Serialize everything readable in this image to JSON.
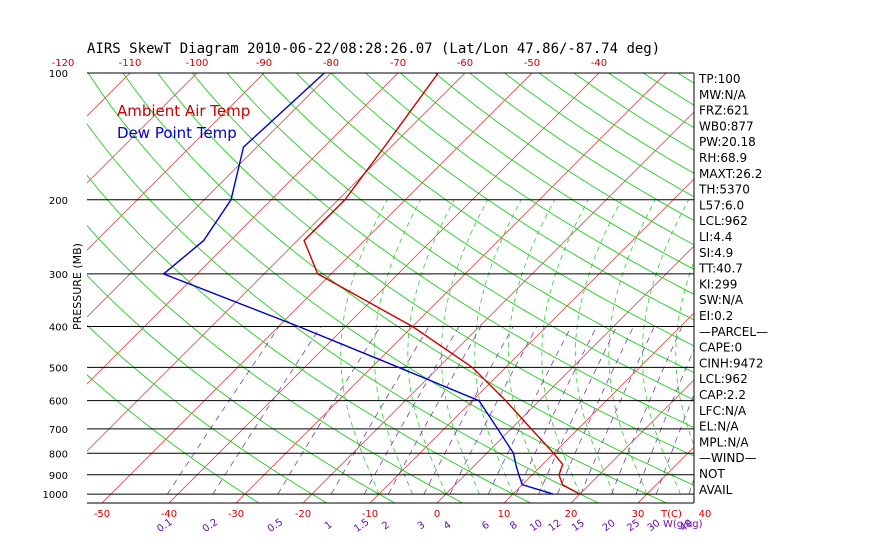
{
  "chart_data": {
    "type": "line",
    "title": "AIRS SkewT Diagram 2010-06-22/08:28:26.07 (Lat/Lon 47.86/-87.74 deg)",
    "ylabel": "PRESSURE (MB)",
    "xlabel_bottom": "T(C)",
    "mixing_ratio_label": "W(g/kg)",
    "pressure_ticks": [
      "100",
      "200",
      "300",
      "400",
      "500",
      "600",
      "700",
      "800",
      "900",
      "1000"
    ],
    "pressure_levels": [
      100,
      200,
      300,
      400,
      500,
      600,
      700,
      800,
      900,
      1000
    ],
    "top_temp_ticks": [
      "-120",
      "-110",
      "-100",
      "-90",
      "-80",
      "-70",
      "-60",
      "-50",
      "-40"
    ],
    "bottom_temp_ticks": [
      "-50",
      "-40",
      "-30",
      "-20",
      "-10",
      "0",
      "10",
      "20",
      "30",
      "40"
    ],
    "mixing_ratio_ticks": [
      "0.1",
      "0.2",
      "0.5",
      "1",
      "1.5",
      "2",
      "3",
      "4",
      "6",
      "8",
      "10",
      "12",
      "15",
      "20",
      "25",
      "30",
      "40"
    ],
    "legend": [
      "Ambient Air Temp",
      "Dew Point Temp"
    ],
    "series": [
      {
        "name": "Ambient Air Temp",
        "color": "#cc0000",
        "points": [
          {
            "p": 100,
            "t": -64
          },
          {
            "p": 150,
            "t": -61
          },
          {
            "p": 200,
            "t": -59
          },
          {
            "p": 250,
            "t": -59
          },
          {
            "p": 300,
            "t": -52
          },
          {
            "p": 400,
            "t": -30
          },
          {
            "p": 500,
            "t": -15
          },
          {
            "p": 600,
            "t": -5
          },
          {
            "p": 700,
            "t": 3
          },
          {
            "p": 800,
            "t": 10
          },
          {
            "p": 850,
            "t": 13
          },
          {
            "p": 900,
            "t": 14
          },
          {
            "p": 950,
            "t": 16
          },
          {
            "p": 1000,
            "t": 20
          }
        ]
      },
      {
        "name": "Dew Point Temp",
        "color": "#0000cc",
        "points": [
          {
            "p": 100,
            "t": -81
          },
          {
            "p": 150,
            "t": -82
          },
          {
            "p": 200,
            "t": -76
          },
          {
            "p": 250,
            "t": -74
          },
          {
            "p": 300,
            "t": -75
          },
          {
            "p": 400,
            "t": -47
          },
          {
            "p": 500,
            "t": -26
          },
          {
            "p": 600,
            "t": -9
          },
          {
            "p": 700,
            "t": -2
          },
          {
            "p": 800,
            "t": 4
          },
          {
            "p": 850,
            "t": 6
          },
          {
            "p": 900,
            "t": 8
          },
          {
            "p": 950,
            "t": 10
          },
          {
            "p": 1000,
            "t": 16
          }
        ]
      }
    ],
    "grid": true
  },
  "stats": [
    "TP:100",
    "MW:N/A",
    "FRZ:621",
    "WB0:877",
    "PW:20.18",
    "RH:68.9",
    "MAXT:26.2",
    "TH:5370",
    "L57:6.0",
    "LCL:962",
    "LI:4.4",
    "SI:4.9",
    "TT:40.7",
    "KI:299",
    "SW:N/A",
    "EI:0.2",
    "—PARCEL—",
    "CAPE:0",
    "CINH:9472",
    "LCL:962",
    "CAP:2.2",
    "LFC:N/A",
    "EL:N/A",
    "MPL:N/A",
    "—WIND—",
    " NOT",
    "AVAIL"
  ]
}
